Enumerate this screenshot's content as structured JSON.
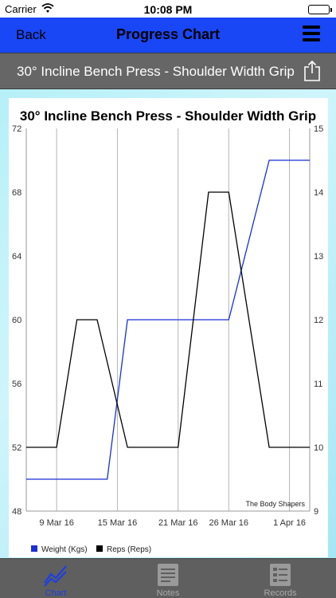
{
  "status_bar": {
    "carrier": "Carrier",
    "time": "10:08 PM",
    "battery_level": 1.0
  },
  "nav": {
    "back_label": "Back",
    "title": "Progress Chart"
  },
  "exercise_title": "30° Incline Bench Press - Shoulder Width Grip",
  "tabs": [
    {
      "label": "Chart",
      "icon": "chart-icon",
      "active": true
    },
    {
      "label": "Notes",
      "icon": "notes-icon",
      "active": false
    },
    {
      "label": "Records",
      "icon": "records-icon",
      "active": false
    }
  ],
  "chart_data": {
    "type": "line",
    "title": "30° Incline Bench Press - Shoulder Width Grip",
    "watermark": "The Body Shapers",
    "x_ticks": [
      "9 Mar 16",
      "15 Mar 16",
      "21 Mar 16",
      "26 Mar 16",
      "1 Apr 16"
    ],
    "x_range": [
      "6 Mar 16",
      "3 Apr 16"
    ],
    "y_left": {
      "range": [
        48,
        72
      ],
      "ticks": [
        "48",
        "52",
        "56",
        "60",
        "64",
        "68",
        "72"
      ]
    },
    "y_right": {
      "range": [
        9,
        15
      ],
      "ticks": [
        "9",
        "10",
        "11",
        "12",
        "13",
        "14",
        "15"
      ]
    },
    "grid": "vertical",
    "legend_position": "bottom-left",
    "series": [
      {
        "name": "Weight (Kgs)",
        "color": "#1a2fd6",
        "axis": "left",
        "points": [
          [
            "6 Mar 16",
            50
          ],
          [
            "14 Mar 16",
            50
          ],
          [
            "16 Mar 16",
            60
          ],
          [
            "18 Mar 16",
            60
          ],
          [
            "26 Mar 16",
            60
          ],
          [
            "30 Mar 16",
            70
          ],
          [
            "3 Apr 16",
            70
          ]
        ]
      },
      {
        "name": "Reps (Reps)",
        "color": "#000000",
        "axis": "right",
        "points": [
          [
            "6 Mar 16",
            10
          ],
          [
            "9 Mar 16",
            10
          ],
          [
            "11 Mar 16",
            12
          ],
          [
            "13 Mar 16",
            12
          ],
          [
            "16 Mar 16",
            10
          ],
          [
            "18 Mar 16",
            10
          ],
          [
            "21 Mar 16",
            10
          ],
          [
            "24 Mar 16",
            14
          ],
          [
            "26 Mar 16",
            14
          ],
          [
            "30 Mar 16",
            10
          ],
          [
            "3 Apr 16",
            10
          ]
        ]
      }
    ]
  }
}
